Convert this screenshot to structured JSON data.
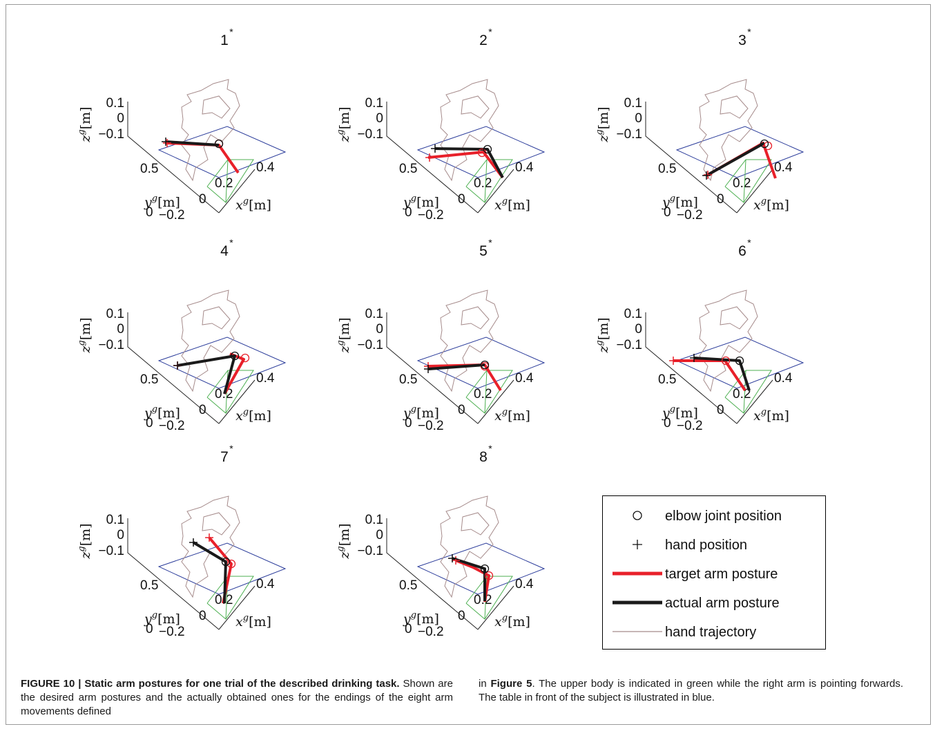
{
  "panels": [
    {
      "label": "1",
      "star": "*"
    },
    {
      "label": "2",
      "star": "*"
    },
    {
      "label": "3",
      "star": "*"
    },
    {
      "label": "4",
      "star": "*"
    },
    {
      "label": "5",
      "star": "*"
    },
    {
      "label": "6",
      "star": "*"
    },
    {
      "label": "7",
      "star": "*"
    },
    {
      "label": "8",
      "star": "*"
    }
  ],
  "axes": {
    "z_ticks": [
      "0.1",
      "0",
      "−0.1"
    ],
    "y_ticks": [
      "0.5",
      "0"
    ],
    "x_ticks": [
      "−0.2",
      "0",
      "0.2",
      "0.4"
    ],
    "z_label": {
      "var": "z",
      "sup": "g",
      "unit": "[m]"
    },
    "y_label": {
      "var": "y",
      "sup": "g",
      "unit": "[m]"
    },
    "x_label": {
      "var": "x",
      "sup": "g",
      "unit": "[m]"
    }
  },
  "legend": {
    "items": [
      {
        "label": "elbow joint position",
        "marker": "circle"
      },
      {
        "label": "hand position",
        "marker": "plus"
      },
      {
        "label": "target arm posture",
        "marker": "line",
        "color": "#e8202a"
      },
      {
        "label": "actual arm posture",
        "marker": "line",
        "color": "#1a1a1a"
      },
      {
        "label": "hand trajectory",
        "marker": "thin-line",
        "color": "#a58a8a"
      }
    ]
  },
  "colors": {
    "target": "#e8202a",
    "actual": "#1a1a1a",
    "trajectory": "#a58a8a",
    "table": "#2a3b9a",
    "body": "#4caf50"
  },
  "caption": {
    "figure_label": "FIGURE 10 | Static arm postures for one trial of the described drinking task.",
    "left_text": " Shown are the desired arm postures and the actually obtained ones for the endings of the eight arm movements defined",
    "right_pre": "in ",
    "right_ref": "Figure 5",
    "right_post": ". The upper body is indicated in green while the right arm is pointing forwards. The table in front of the subject is illustrated in blue."
  }
}
